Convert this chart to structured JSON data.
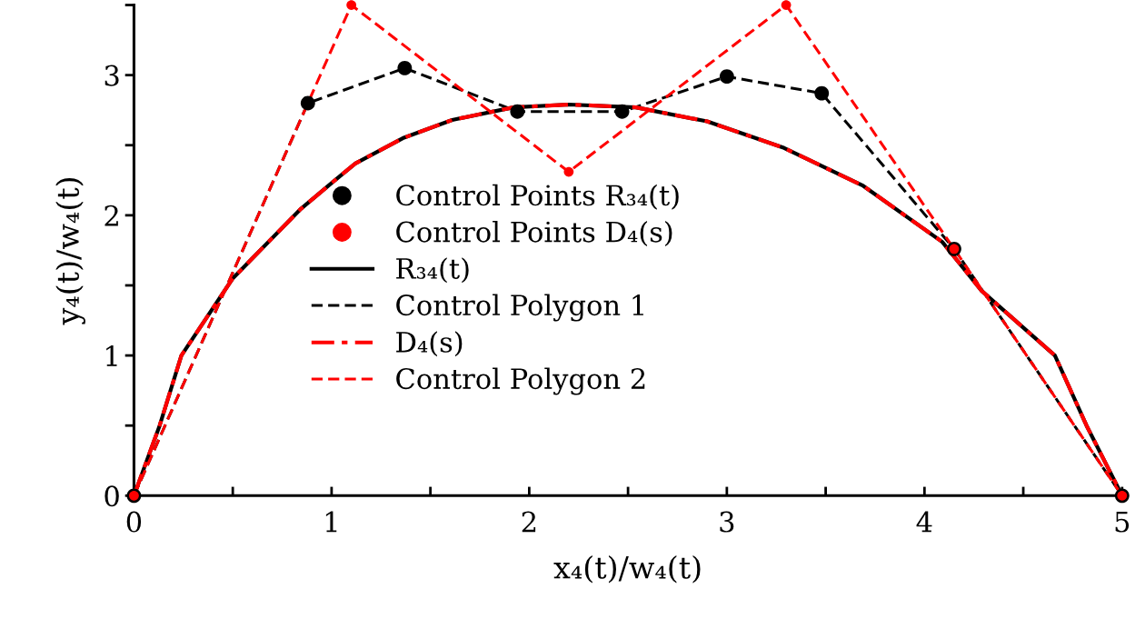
{
  "chart_data": {
    "type": "line",
    "xlabel": "x₄(t)/w₄(t)",
    "ylabel": "y₄(t)/w₄(t)",
    "xlim": [
      0,
      5
    ],
    "ylim": [
      0,
      3.5
    ],
    "xticks": [
      0,
      {
        "value": 0.5,
        "label": null
      },
      1,
      {
        "value": 1.5,
        "label": null
      },
      2,
      {
        "value": 2.5,
        "label": null
      },
      3,
      {
        "value": 3.5,
        "label": null
      },
      4,
      {
        "value": 4.5,
        "label": null
      },
      5
    ],
    "yticks": [
      0,
      {
        "value": 0.5,
        "label": null
      },
      1,
      {
        "value": 1.5,
        "label": null
      },
      2,
      {
        "value": 2.5,
        "label": null
      },
      3,
      {
        "value": 3.5,
        "label": null
      }
    ],
    "grid": false,
    "legend": "center left",
    "series": [
      {
        "name": "Control Points R₃₄(t)",
        "type": "scatter",
        "marker": "circle",
        "color": "#000000",
        "x": [
          0,
          0.88,
          1.37,
          1.94,
          2.47,
          3.0,
          3.48,
          4.15,
          5
        ],
        "values": [
          0,
          2.8,
          3.05,
          2.74,
          2.74,
          2.99,
          2.87,
          1.76,
          0
        ]
      },
      {
        "name": "Control Points D₄(s)",
        "type": "scatter",
        "marker": "circle",
        "color": "#ff0000",
        "x": [
          0,
          1.1,
          2.2,
          3.3,
          4.15,
          5
        ],
        "values": [
          0,
          3.5,
          2.31,
          3.5,
          1.76,
          0
        ]
      },
      {
        "name": "R₃₄(t)",
        "line_style": "solid",
        "color": "#000000",
        "x": [
          0,
          0.13,
          0.24,
          0.5,
          0.84,
          1.0,
          1.12,
          1.36,
          1.61,
          1.92,
          2.2,
          2.54,
          2.9,
          3.29,
          3.69,
          4.09,
          4.29,
          4.66,
          4.82,
          5
        ],
        "values": [
          0,
          0.5,
          1.0,
          1.55,
          2.04,
          2.23,
          2.37,
          2.55,
          2.68,
          2.77,
          2.79,
          2.77,
          2.67,
          2.48,
          2.21,
          1.81,
          1.46,
          1.0,
          0.5,
          0
        ]
      },
      {
        "name": "Control Polygon 1",
        "line_style": "dashed",
        "color": "#000000",
        "x": [
          0,
          0.88,
          1.37,
          1.94,
          2.47,
          3.0,
          3.48,
          4.15,
          5
        ],
        "values": [
          0,
          2.8,
          3.05,
          2.74,
          2.74,
          2.99,
          2.87,
          1.76,
          0
        ]
      },
      {
        "name": "D₄(s)",
        "line_style": "dashdot",
        "color": "#ff0000",
        "x": [
          0,
          0.13,
          0.24,
          0.5,
          0.84,
          1.0,
          1.12,
          1.36,
          1.61,
          1.92,
          2.2,
          2.54,
          2.9,
          3.29,
          3.69,
          4.09,
          4.29,
          4.66,
          4.82,
          5
        ],
        "values": [
          0,
          0.5,
          1.0,
          1.55,
          2.04,
          2.23,
          2.37,
          2.55,
          2.68,
          2.77,
          2.79,
          2.77,
          2.67,
          2.48,
          2.21,
          1.81,
          1.46,
          1.0,
          0.5,
          0
        ]
      },
      {
        "name": "Control Polygon 2",
        "line_style": "dashed",
        "color": "#ff0000",
        "x": [
          0,
          1.1,
          2.2,
          3.3,
          4.15,
          5
        ],
        "values": [
          0,
          3.5,
          2.31,
          3.5,
          1.76,
          0
        ]
      }
    ]
  }
}
